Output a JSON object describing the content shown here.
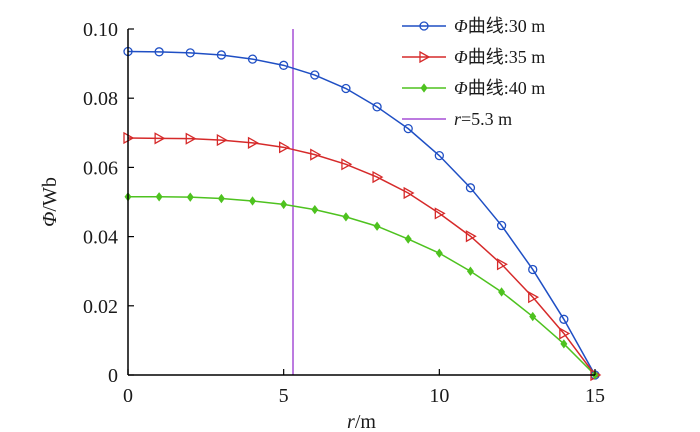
{
  "chart_data": {
    "type": "line",
    "xlabel_var": "r",
    "xlabel_unit": "/m",
    "ylabel_var": "Φ",
    "ylabel_unit": "/Wb",
    "xlim": [
      0,
      15
    ],
    "ylim": [
      0,
      0.1
    ],
    "xticks": [
      0,
      5,
      10,
      15
    ],
    "xtick_labels": [
      "0",
      "5",
      "10",
      "15"
    ],
    "yticks": [
      0,
      0.02,
      0.04,
      0.06,
      0.08,
      0.1
    ],
    "ytick_labels": [
      "0",
      "0.02",
      "0.04",
      "0.06",
      "0.08",
      "0.10"
    ],
    "grid": false,
    "legend_position": "top-right",
    "x": [
      0,
      1,
      2,
      3,
      4,
      5,
      6,
      7,
      8,
      9,
      10,
      11,
      12,
      13,
      14,
      15
    ],
    "series": [
      {
        "name_var": "Φ",
        "name_rest": "曲线:30 m",
        "color": "#1f4fc4",
        "marker": "circle",
        "values": [
          0.0935,
          0.0934,
          0.0931,
          0.0925,
          0.0913,
          0.0895,
          0.0867,
          0.0828,
          0.0775,
          0.0712,
          0.0634,
          0.0541,
          0.0432,
          0.0305,
          0.0161,
          0.0
        ]
      },
      {
        "name_var": "Φ",
        "name_rest": "曲线:35 m",
        "color": "#d62a2a",
        "marker": "triangle-right",
        "values": [
          0.0685,
          0.0684,
          0.0683,
          0.0679,
          0.0671,
          0.0658,
          0.0637,
          0.0609,
          0.0572,
          0.0526,
          0.0467,
          0.0401,
          0.032,
          0.0225,
          0.012,
          0.0
        ]
      },
      {
        "name_var": "Φ",
        "name_rest": "曲线:40 m",
        "color": "#4ec21f",
        "marker": "diamond",
        "values": [
          0.0515,
          0.0515,
          0.0514,
          0.051,
          0.0503,
          0.0493,
          0.0478,
          0.0457,
          0.043,
          0.0393,
          0.0352,
          0.03,
          0.024,
          0.0169,
          0.009,
          0.0
        ]
      }
    ],
    "vline": {
      "x": 5.3,
      "label_var": "r",
      "label_rest": "=5.3 m",
      "color": "#a64fd6"
    }
  }
}
